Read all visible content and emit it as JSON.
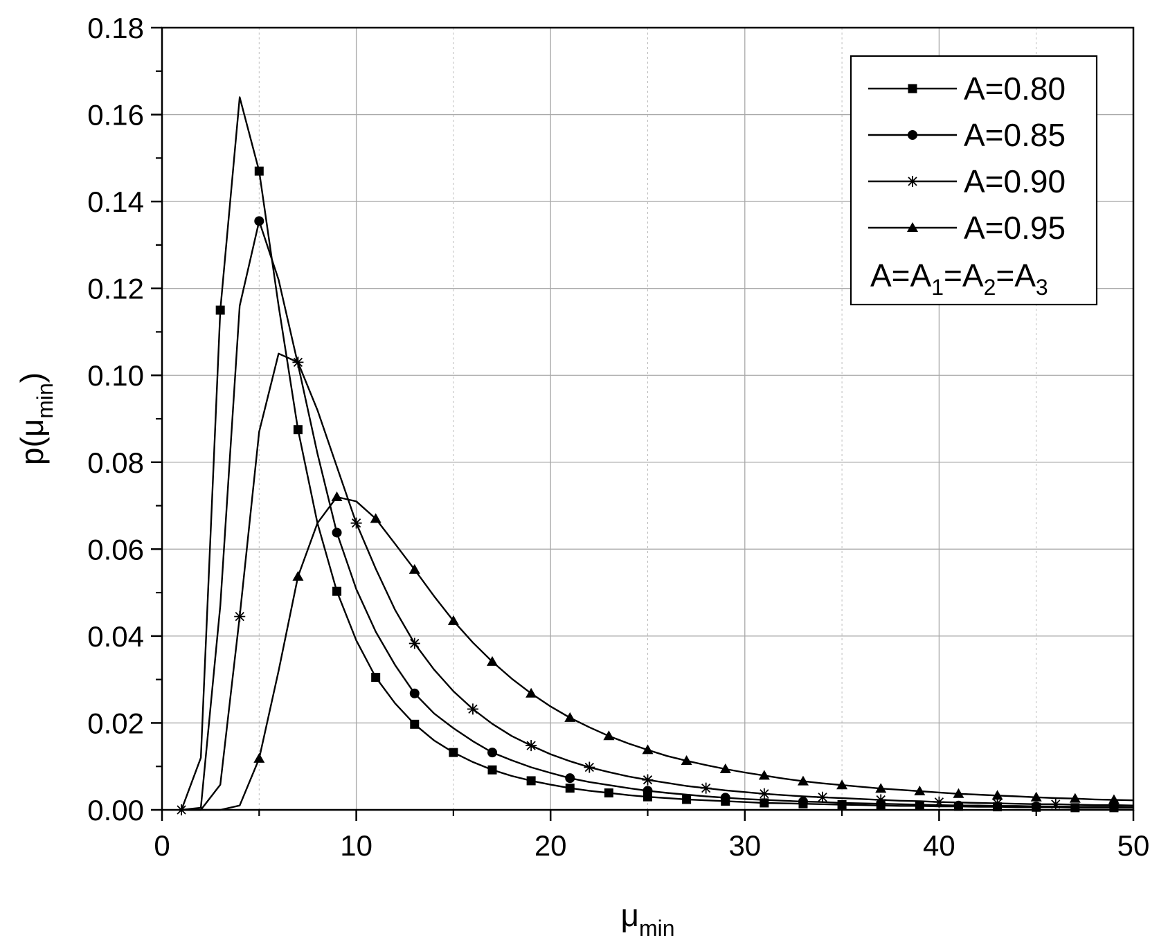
{
  "chart_data": {
    "type": "line",
    "xlabel": {
      "base": "μ",
      "sub": "min"
    },
    "ylabel": {
      "prefix": "p(",
      "base": "μ",
      "sub": "min",
      "suffix": ")"
    },
    "xlim": [
      0,
      50
    ],
    "ylim": [
      0,
      0.18
    ],
    "xticks": [
      0,
      10,
      20,
      30,
      40,
      50
    ],
    "xtick_labels": [
      "0",
      "10",
      "20",
      "30",
      "40",
      "50"
    ],
    "yticks": [
      0,
      0.02,
      0.04,
      0.06,
      0.08,
      0.1,
      0.12,
      0.14,
      0.16,
      0.18
    ],
    "ytick_labels": [
      "0.00",
      "0.02",
      "0.04",
      "0.06",
      "0.08",
      "0.10",
      "0.12",
      "0.14",
      "0.16",
      "0.18"
    ],
    "grid": true,
    "legend_position": "top-right",
    "legend_note": {
      "parts": [
        "A=A",
        "1",
        "=A",
        "2",
        "=A",
        "3"
      ]
    },
    "series": [
      {
        "name": "A=0.80",
        "marker": "square",
        "color": "#000000",
        "x": [
          1,
          2,
          3,
          4,
          5,
          6,
          7,
          8,
          9,
          10,
          11,
          12,
          13,
          14,
          15,
          16,
          17,
          18,
          19,
          20,
          21,
          22,
          23,
          24,
          25,
          26,
          27,
          28,
          29,
          30,
          31,
          32,
          33,
          34,
          35,
          36,
          37,
          38,
          39,
          40,
          41,
          42,
          43,
          44,
          45,
          46,
          47,
          48,
          49,
          50
        ],
        "y": [
          0.0,
          0.012,
          0.115,
          0.164,
          0.147,
          0.116,
          0.0875,
          0.066,
          0.0503,
          0.039,
          0.0305,
          0.0245,
          0.0197,
          0.016,
          0.0132,
          0.011,
          0.0092,
          0.0078,
          0.0067,
          0.0058,
          0.005,
          0.0044,
          0.0039,
          0.0034,
          0.003,
          0.0027,
          0.0024,
          0.0022,
          0.002,
          0.0018,
          0.0016,
          0.0015,
          0.0014,
          0.0013,
          0.0012,
          0.0011,
          0.001,
          0.0009,
          0.0009,
          0.0008,
          0.0008,
          0.0007,
          0.0007,
          0.0006,
          0.0006,
          0.0006,
          0.0005,
          0.0005,
          0.0005,
          0.0005
        ],
        "marker_x": [
          3,
          5,
          7,
          9,
          11,
          13,
          15,
          17,
          19,
          21,
          23,
          25,
          27,
          29,
          31,
          33,
          35,
          37,
          39,
          41,
          43,
          45,
          47,
          49
        ]
      },
      {
        "name": "A=0.85",
        "marker": "circle",
        "color": "#000000",
        "x": [
          1,
          2,
          3,
          4,
          5,
          6,
          7,
          8,
          9,
          10,
          11,
          12,
          13,
          14,
          15,
          16,
          17,
          18,
          19,
          20,
          21,
          22,
          23,
          24,
          25,
          26,
          27,
          28,
          29,
          30,
          31,
          32,
          33,
          34,
          35,
          36,
          37,
          38,
          39,
          40,
          41,
          42,
          43,
          44,
          45,
          46,
          47,
          48,
          49,
          50
        ],
        "y": [
          0.0,
          0.0005,
          0.047,
          0.116,
          0.1355,
          0.122,
          0.1025,
          0.082,
          0.0638,
          0.0508,
          0.041,
          0.0333,
          0.0268,
          0.0222,
          0.0188,
          0.0158,
          0.0132,
          0.0114,
          0.0098,
          0.0085,
          0.0073,
          0.0064,
          0.0057,
          0.005,
          0.0044,
          0.0039,
          0.0035,
          0.0031,
          0.0028,
          0.0025,
          0.0023,
          0.0021,
          0.0019,
          0.0018,
          0.0016,
          0.0015,
          0.0014,
          0.0013,
          0.0012,
          0.0011,
          0.001,
          0.001,
          0.0009,
          0.0009,
          0.0008,
          0.0008,
          0.0007,
          0.0007,
          0.0007,
          0.0006
        ],
        "marker_x": [
          5,
          9,
          13,
          17,
          21,
          25,
          29,
          33,
          37,
          41,
          45,
          49
        ]
      },
      {
        "name": "A=0.90",
        "marker": "star",
        "color": "#000000",
        "x": [
          1,
          2,
          3,
          4,
          5,
          6,
          7,
          8,
          9,
          10,
          11,
          12,
          13,
          14,
          15,
          16,
          17,
          18,
          19,
          20,
          21,
          22,
          23,
          24,
          25,
          26,
          27,
          28,
          29,
          30,
          31,
          32,
          33,
          34,
          35,
          36,
          37,
          38,
          39,
          40,
          41,
          42,
          43,
          44,
          45,
          46,
          47,
          48,
          49,
          50
        ],
        "y": [
          0.0,
          0.0,
          0.0058,
          0.0445,
          0.087,
          0.105,
          0.103,
          0.092,
          0.079,
          0.066,
          0.0555,
          0.046,
          0.0383,
          0.0323,
          0.0273,
          0.0232,
          0.0198,
          0.017,
          0.0148,
          0.0128,
          0.0112,
          0.0098,
          0.0087,
          0.0077,
          0.0069,
          0.0062,
          0.0055,
          0.005,
          0.0045,
          0.0041,
          0.0037,
          0.0034,
          0.0031,
          0.0029,
          0.0027,
          0.0025,
          0.0023,
          0.0021,
          0.002,
          0.0018,
          0.0017,
          0.0016,
          0.0015,
          0.0014,
          0.0013,
          0.0013,
          0.0012,
          0.0011,
          0.0011,
          0.001
        ],
        "marker_x": [
          1,
          4,
          7,
          10,
          13,
          16,
          19,
          22,
          25,
          28,
          31,
          34,
          37,
          40,
          43,
          46,
          49
        ]
      },
      {
        "name": "A=0.95",
        "marker": "triangle",
        "color": "#000000",
        "x": [
          1,
          2,
          3,
          4,
          5,
          6,
          7,
          8,
          9,
          10,
          11,
          12,
          13,
          14,
          15,
          16,
          17,
          18,
          19,
          20,
          21,
          22,
          23,
          24,
          25,
          26,
          27,
          28,
          29,
          30,
          31,
          32,
          33,
          34,
          35,
          36,
          37,
          38,
          39,
          40,
          41,
          42,
          43,
          44,
          45,
          46,
          47,
          48,
          49,
          50
        ],
        "y": [
          0.0,
          0.0,
          0.0,
          0.001,
          0.0118,
          0.032,
          0.0537,
          0.066,
          0.072,
          0.071,
          0.067,
          0.0612,
          0.0553,
          0.0492,
          0.0435,
          0.0385,
          0.0341,
          0.0302,
          0.0268,
          0.0238,
          0.0212,
          0.019,
          0.017,
          0.0153,
          0.0138,
          0.0124,
          0.0113,
          0.0103,
          0.0094,
          0.0086,
          0.0079,
          0.0072,
          0.0066,
          0.0061,
          0.0057,
          0.0053,
          0.0049,
          0.0046,
          0.0043,
          0.004,
          0.0037,
          0.0035,
          0.0033,
          0.0031,
          0.0029,
          0.0027,
          0.0026,
          0.0024,
          0.0023,
          0.0022
        ],
        "marker_x": [
          5,
          7,
          9,
          11,
          13,
          15,
          17,
          19,
          21,
          23,
          25,
          27,
          29,
          31,
          33,
          35,
          37,
          39,
          41,
          43,
          45,
          47,
          49
        ]
      }
    ]
  }
}
